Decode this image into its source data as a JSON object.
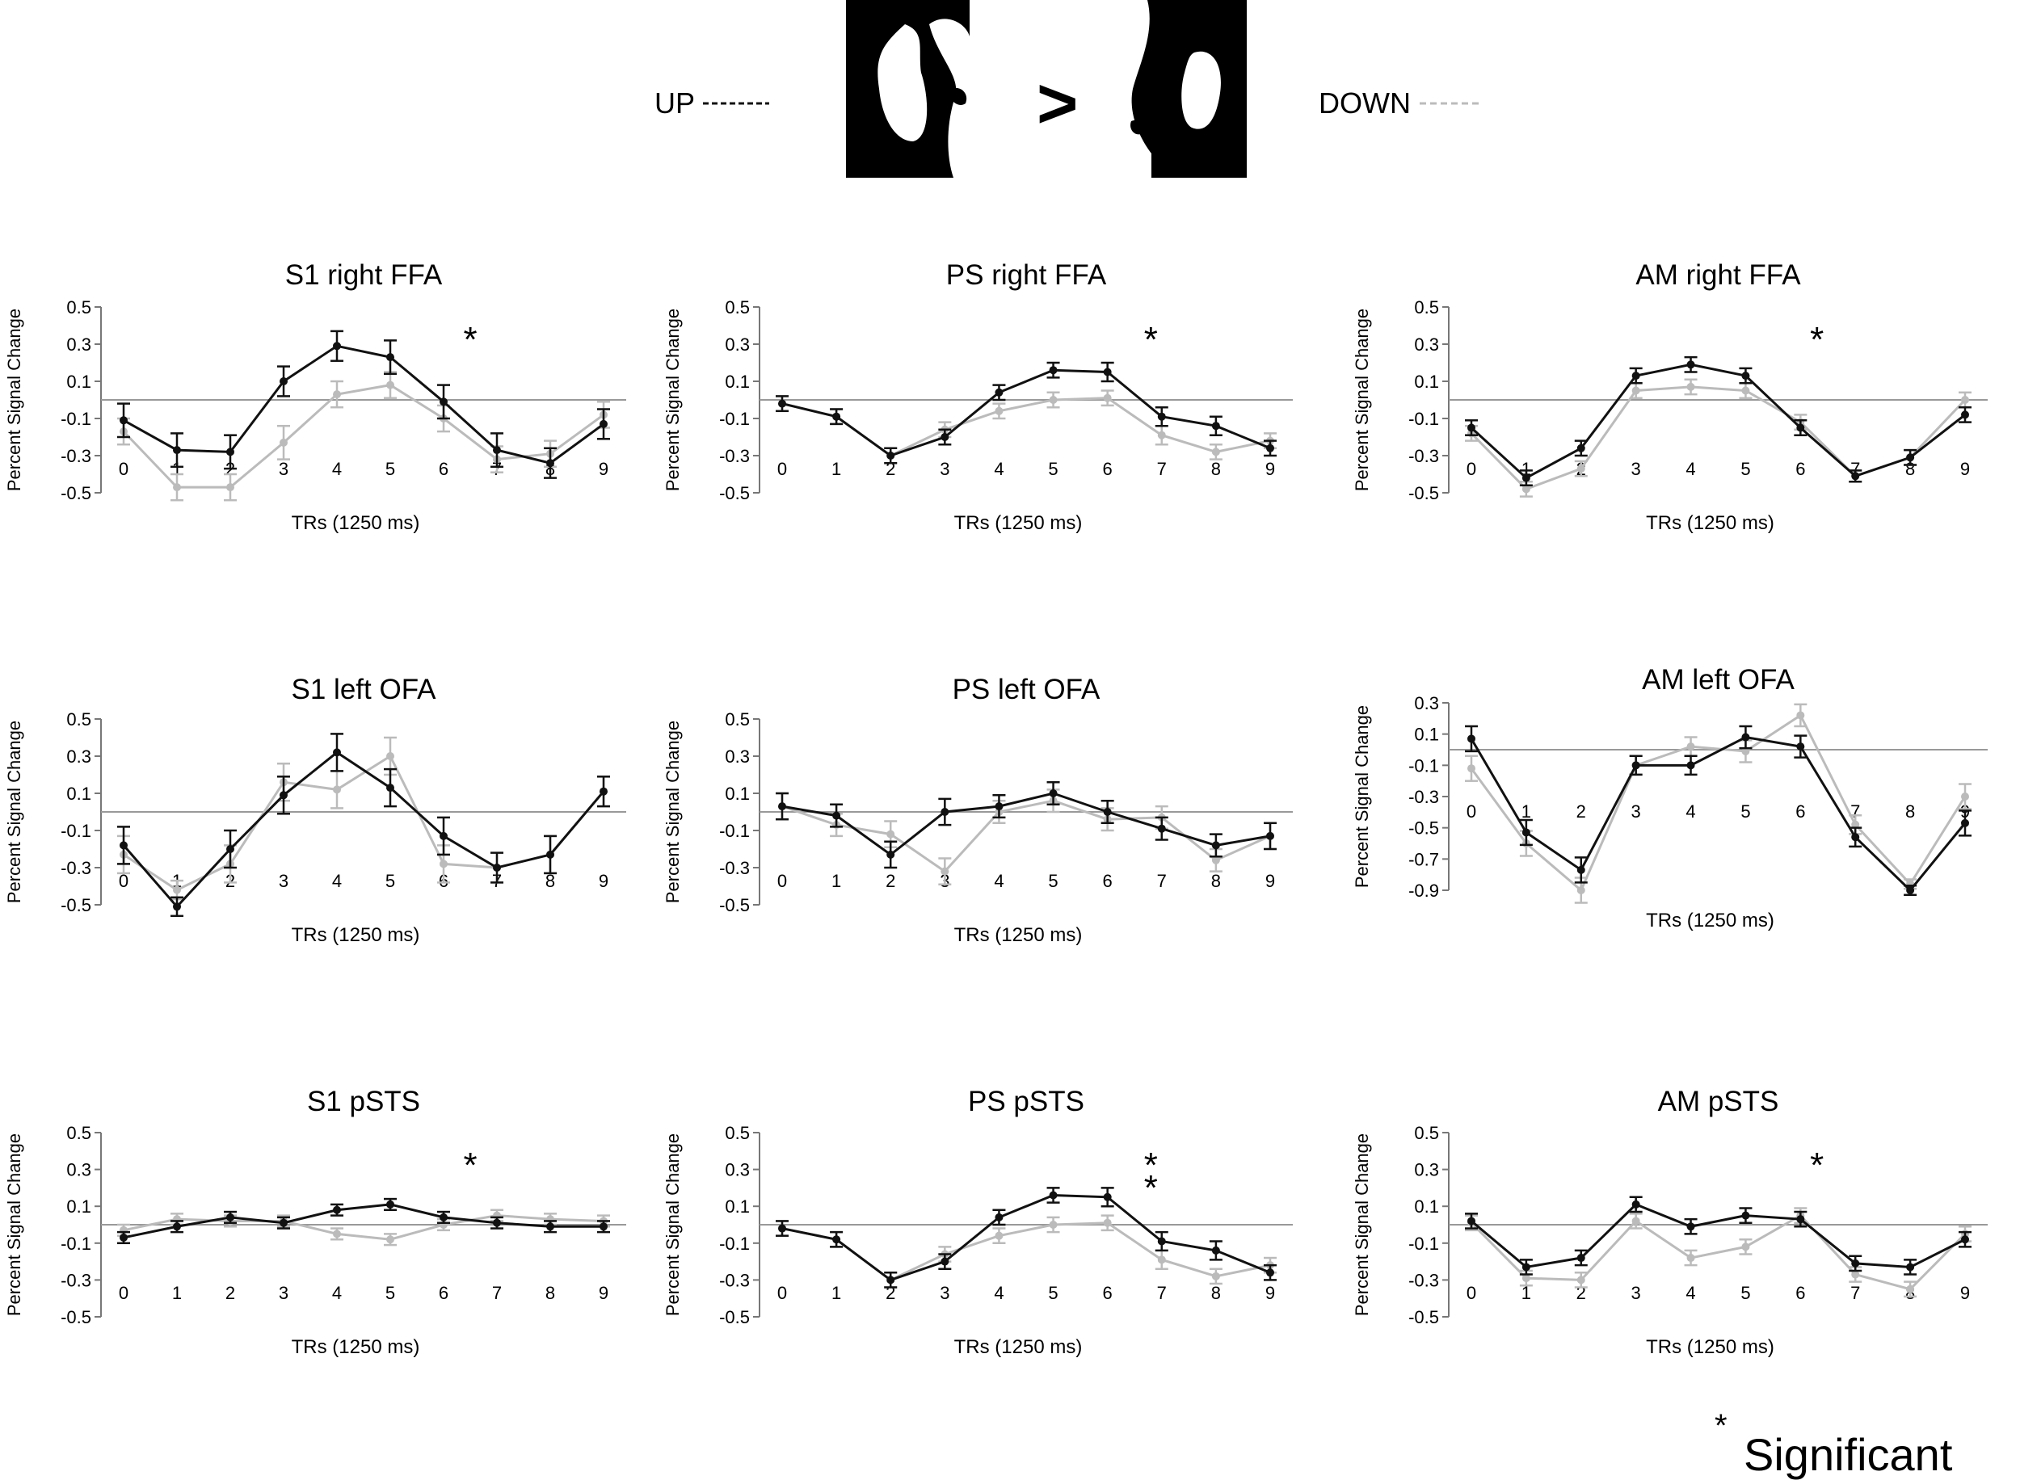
{
  "legend": {
    "up_label": "UP",
    "down_label": "DOWN",
    "comparison_symbol": ">",
    "up_color": "#111111",
    "down_color": "#bbbbbb"
  },
  "footnote": {
    "symbol": "*",
    "text": "Significant"
  },
  "chart_data": [
    {
      "type": "line",
      "title": "S1 right FFA",
      "xlabel": "TRs (1250 ms)",
      "ylabel": "Percent Signal Change",
      "x": [
        0,
        1,
        2,
        3,
        4,
        5,
        6,
        7,
        8,
        9
      ],
      "yticks": [
        "-0.5",
        "-0.3",
        "-0.1",
        "0.1",
        "0.3",
        "0.5"
      ],
      "ylim": [
        -0.5,
        0.5
      ],
      "significance": [
        {
          "x": 6.5,
          "marks": 1
        }
      ],
      "series": [
        {
          "values": [
            -0.11,
            -0.27,
            -0.28,
            0.1,
            0.29,
            0.23,
            -0.01,
            -0.27,
            -0.34,
            -0.13
          ],
          "errors": [
            0.09,
            0.09,
            0.09,
            0.08,
            0.08,
            0.09,
            0.09,
            0.09,
            0.08,
            0.08
          ]
        },
        {
          "values": [
            -0.17,
            -0.47,
            -0.47,
            -0.23,
            0.03,
            0.08,
            -0.1,
            -0.32,
            -0.29,
            -0.08
          ],
          "errors": [
            0.07,
            0.07,
            0.07,
            0.09,
            0.07,
            0.07,
            0.07,
            0.07,
            0.07,
            0.07
          ]
        }
      ]
    },
    {
      "type": "line",
      "title": "PS right FFA",
      "xlabel": "TRs (1250 ms)",
      "ylabel": "Percent Signal Change",
      "x": [
        0,
        1,
        2,
        3,
        4,
        5,
        6,
        7,
        8,
        9
      ],
      "yticks": [
        "-0.5",
        "-0.3",
        "-0.1",
        "0.1",
        "0.3",
        "0.5"
      ],
      "ylim": [
        -0.5,
        0.5
      ],
      "significance": [
        {
          "x": 6.8,
          "marks": 1
        }
      ],
      "series": [
        {
          "values": [
            -0.02,
            -0.09,
            -0.3,
            -0.2,
            0.04,
            0.16,
            0.15,
            -0.09,
            -0.14,
            -0.26
          ],
          "errors": [
            0.04,
            0.04,
            0.04,
            0.04,
            0.04,
            0.04,
            0.05,
            0.05,
            0.05,
            0.04
          ]
        },
        {
          "values": [
            -0.02,
            -0.09,
            -0.3,
            -0.16,
            -0.06,
            0.0,
            0.01,
            -0.19,
            -0.28,
            -0.22
          ],
          "errors": [
            0.04,
            0.04,
            0.04,
            0.04,
            0.04,
            0.04,
            0.04,
            0.05,
            0.04,
            0.04
          ]
        }
      ]
    },
    {
      "type": "line",
      "title": "AM right FFA",
      "xlabel": "TRs (1250 ms)",
      "ylabel": "Percent Signal Change",
      "x": [
        0,
        1,
        2,
        3,
        4,
        5,
        6,
        7,
        8,
        9
      ],
      "yticks": [
        "-0.5",
        "-0.3",
        "-0.1",
        "0.1",
        "0.3",
        "0.5"
      ],
      "ylim": [
        -0.5,
        0.5
      ],
      "significance": [
        {
          "x": 6.3,
          "marks": 1
        }
      ],
      "series": [
        {
          "values": [
            -0.15,
            -0.42,
            -0.26,
            0.13,
            0.19,
            0.13,
            -0.15,
            -0.41,
            -0.31,
            -0.08
          ],
          "errors": [
            0.04,
            0.04,
            0.04,
            0.04,
            0.04,
            0.04,
            0.04,
            0.03,
            0.04,
            0.04
          ]
        },
        {
          "values": [
            -0.18,
            -0.48,
            -0.37,
            0.05,
            0.07,
            0.05,
            -0.12,
            -0.41,
            -0.31,
            0.0
          ],
          "errors": [
            0.04,
            0.04,
            0.04,
            0.04,
            0.04,
            0.04,
            0.04,
            0.03,
            0.04,
            0.04
          ]
        }
      ]
    },
    {
      "type": "line",
      "title": "S1 left OFA",
      "xlabel": "TRs (1250 ms)",
      "ylabel": "Percent Signal Change",
      "x": [
        0,
        1,
        2,
        3,
        4,
        5,
        6,
        7,
        8,
        9
      ],
      "yticks": [
        "-0.5",
        "-0.3",
        "-0.1",
        "0.1",
        "0.3",
        "0.5"
      ],
      "ylim": [
        -0.5,
        0.5
      ],
      "significance": [],
      "series": [
        {
          "values": [
            -0.18,
            -0.51,
            -0.2,
            0.09,
            0.32,
            0.13,
            -0.13,
            -0.3,
            -0.23,
            0.11
          ],
          "errors": [
            0.1,
            0.05,
            0.1,
            0.1,
            0.1,
            0.1,
            0.1,
            0.08,
            0.1,
            0.08
          ]
        },
        {
          "values": [
            -0.23,
            -0.42,
            -0.28,
            0.16,
            0.12,
            0.3,
            -0.28,
            -0.3,
            -0.23,
            0.11
          ],
          "errors": [
            0.1,
            0.05,
            0.1,
            0.1,
            0.1,
            0.1,
            0.1,
            0.08,
            0.1,
            0.08
          ]
        }
      ]
    },
    {
      "type": "line",
      "title": "PS left OFA",
      "xlabel": "TRs (1250 ms)",
      "ylabel": "Percent Signal Change",
      "x": [
        0,
        1,
        2,
        3,
        4,
        5,
        6,
        7,
        8,
        9
      ],
      "yticks": [
        "-0.5",
        "-0.3",
        "-0.1",
        "0.1",
        "0.3",
        "0.5"
      ],
      "ylim": [
        -0.5,
        0.5
      ],
      "significance": [],
      "series": [
        {
          "values": [
            0.03,
            -0.02,
            -0.23,
            0.0,
            0.03,
            0.1,
            0.0,
            -0.09,
            -0.18,
            -0.13
          ],
          "errors": [
            0.07,
            0.06,
            0.07,
            0.07,
            0.06,
            0.06,
            0.06,
            0.06,
            0.06,
            0.07
          ]
        },
        {
          "values": [
            0.03,
            -0.07,
            -0.12,
            -0.32,
            0.0,
            0.06,
            -0.04,
            -0.03,
            -0.26,
            -0.13
          ],
          "errors": [
            0.07,
            0.06,
            0.07,
            0.07,
            0.06,
            0.06,
            0.06,
            0.06,
            0.06,
            0.07
          ]
        }
      ]
    },
    {
      "type": "line",
      "title": "AM left OFA",
      "xlabel": "TRs (1250 ms)",
      "ylabel": "Percent Signal Change",
      "x": [
        0,
        1,
        2,
        3,
        4,
        5,
        6,
        7,
        8,
        9
      ],
      "yticks": [
        "-0.9",
        "-0.7",
        "-0.5",
        "-0.3",
        "-0.1",
        "0.1",
        "0.3"
      ],
      "ylim": [
        -0.9,
        0.3
      ],
      "significance": [],
      "series": [
        {
          "values": [
            0.07,
            -0.53,
            -0.77,
            -0.1,
            -0.1,
            0.08,
            0.02,
            -0.56,
            -0.9,
            -0.47
          ],
          "errors": [
            0.08,
            0.08,
            0.08,
            0.06,
            0.06,
            0.07,
            0.07,
            0.06,
            0.03,
            0.08
          ]
        },
        {
          "values": [
            -0.12,
            -0.6,
            -0.9,
            -0.1,
            0.02,
            -0.01,
            0.22,
            -0.48,
            -0.86,
            -0.3
          ],
          "errors": [
            0.08,
            0.08,
            0.08,
            0.06,
            0.06,
            0.07,
            0.07,
            0.06,
            0.03,
            0.08
          ]
        }
      ]
    },
    {
      "type": "line",
      "title": "S1 pSTS",
      "xlabel": "TRs (1250 ms)",
      "ylabel": "Percent Signal Change",
      "x": [
        0,
        1,
        2,
        3,
        4,
        5,
        6,
        7,
        8,
        9
      ],
      "yticks": [
        "-0.5",
        "-0.3",
        "-0.1",
        "0.1",
        "0.3",
        "0.5"
      ],
      "ylim": [
        -0.5,
        0.5
      ],
      "significance": [
        {
          "x": 6.5,
          "marks": 1
        }
      ],
      "series": [
        {
          "values": [
            -0.07,
            -0.01,
            0.04,
            0.01,
            0.08,
            0.11,
            0.04,
            0.01,
            -0.01,
            -0.01
          ],
          "errors": [
            0.03,
            0.03,
            0.03,
            0.03,
            0.03,
            0.03,
            0.03,
            0.03,
            0.03,
            0.03
          ]
        },
        {
          "values": [
            -0.03,
            0.03,
            0.02,
            0.02,
            -0.05,
            -0.08,
            0.0,
            0.05,
            0.03,
            0.02
          ],
          "errors": [
            0.03,
            0.03,
            0.03,
            0.03,
            0.03,
            0.03,
            0.03,
            0.03,
            0.03,
            0.03
          ]
        }
      ]
    },
    {
      "type": "line",
      "title": "PS pSTS",
      "xlabel": "TRs (1250 ms)",
      "ylabel": "Percent Signal Change",
      "x": [
        0,
        1,
        2,
        3,
        4,
        5,
        6,
        7,
        8,
        9
      ],
      "yticks": [
        "-0.5",
        "-0.3",
        "-0.1",
        "0.1",
        "0.3",
        "0.5"
      ],
      "ylim": [
        -0.5,
        0.5
      ],
      "significance": [
        {
          "x": 6.8,
          "marks": 2
        }
      ],
      "series": [
        {
          "values": [
            -0.02,
            -0.08,
            -0.3,
            -0.2,
            0.04,
            0.16,
            0.15,
            -0.09,
            -0.14,
            -0.26
          ],
          "errors": [
            0.04,
            0.04,
            0.04,
            0.04,
            0.04,
            0.04,
            0.05,
            0.05,
            0.05,
            0.04
          ]
        },
        {
          "values": [
            -0.02,
            -0.08,
            -0.3,
            -0.16,
            -0.06,
            0.0,
            0.01,
            -0.19,
            -0.28,
            -0.22
          ],
          "errors": [
            0.04,
            0.04,
            0.04,
            0.04,
            0.04,
            0.04,
            0.04,
            0.05,
            0.04,
            0.04
          ]
        }
      ]
    },
    {
      "type": "line",
      "title": "AM pSTS",
      "xlabel": "TRs (1250 ms)",
      "ylabel": "Percent Signal Change",
      "x": [
        0,
        1,
        2,
        3,
        4,
        5,
        6,
        7,
        8,
        9
      ],
      "yticks": [
        "-0.5",
        "-0.3",
        "-0.1",
        "0.1",
        "0.3",
        "0.5"
      ],
      "ylim": [
        -0.5,
        0.5
      ],
      "significance": [
        {
          "x": 6.3,
          "marks": 1
        }
      ],
      "series": [
        {
          "values": [
            0.02,
            -0.23,
            -0.18,
            0.11,
            -0.01,
            0.05,
            0.03,
            -0.21,
            -0.23,
            -0.08
          ],
          "errors": [
            0.04,
            0.04,
            0.04,
            0.04,
            0.04,
            0.04,
            0.04,
            0.04,
            0.04,
            0.04
          ]
        },
        {
          "values": [
            0.01,
            -0.29,
            -0.3,
            0.02,
            -0.18,
            -0.12,
            0.05,
            -0.27,
            -0.35,
            -0.05
          ],
          "errors": [
            0.04,
            0.04,
            0.04,
            0.04,
            0.04,
            0.04,
            0.04,
            0.04,
            0.04,
            0.04
          ]
        }
      ]
    }
  ]
}
